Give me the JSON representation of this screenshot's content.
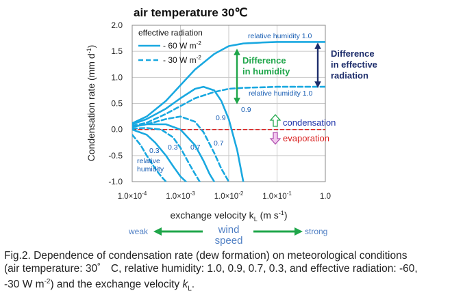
{
  "chart_data": {
    "type": "line",
    "title": "air temperature 30℃",
    "xlabel": "exchange velocity k",
    "xlabel_sub": "L",
    "xlabel_unit_pre": " (m s",
    "xlabel_unit_sup": "-1",
    "xlabel_unit_post": ")",
    "ylabel": "Condensation rate  (mm d",
    "ylabel_sup": "-1",
    "ylabel_post": ")",
    "x_scale": "log",
    "xlim": [
      0.0001,
      1.0
    ],
    "ylim": [
      -1.0,
      2.0
    ],
    "y_ticks": [
      "2.0",
      "1.5",
      "1.0",
      "0.5",
      "0.0",
      "-0.5",
      "-1.0"
    ],
    "x_ticks": [
      "1.0×10",
      "1.0×10",
      "1.0×10",
      "1.0×10",
      "1.0"
    ],
    "x_tick_exps": [
      "-4",
      "-3",
      "-2",
      "-1",
      ""
    ],
    "grid": true,
    "legend": {
      "title": "effective radiation",
      "items": [
        {
          "label": "- 60 W m",
          "sup": "-2",
          "style": "solid"
        },
        {
          "label": "- 30 W m",
          "sup": "-2",
          "style": "dashed"
        }
      ]
    },
    "series": [
      {
        "name": "- 60 W m-2",
        "rh": "1.0",
        "style": "solid",
        "x": [
          0.0001,
          0.0002,
          0.0005,
          0.001,
          0.002,
          0.005,
          0.01,
          0.02,
          0.05,
          0.1,
          0.2,
          0.5,
          1.0
        ],
        "y": [
          0.12,
          0.25,
          0.55,
          0.85,
          1.15,
          1.45,
          1.6,
          1.65,
          1.67,
          1.68,
          1.68,
          1.68,
          1.68
        ]
      },
      {
        "name": "- 60 W m-2",
        "rh": "0.9",
        "style": "solid",
        "x": [
          0.0001,
          0.0002,
          0.0005,
          0.001,
          0.002,
          0.003,
          0.005,
          0.007,
          0.01,
          0.015,
          0.02
        ],
        "y": [
          0.1,
          0.2,
          0.4,
          0.6,
          0.78,
          0.82,
          0.75,
          0.55,
          0.2,
          -0.4,
          -1.0
        ]
      },
      {
        "name": "- 60 W m-2",
        "rh": "0.7",
        "style": "solid",
        "x": [
          0.0001,
          0.0002,
          0.0005,
          0.001,
          0.002,
          0.003,
          0.004,
          0.005
        ],
        "y": [
          0.05,
          0.1,
          0.1,
          0.0,
          -0.3,
          -0.6,
          -0.85,
          -1.0
        ]
      },
      {
        "name": "- 60 W m-2",
        "rh": "0.3",
        "style": "solid",
        "x": [
          0.0001,
          0.0002,
          0.0003,
          0.0005,
          0.0007,
          0.001,
          0.0013
        ],
        "y": [
          0.0,
          -0.1,
          -0.25,
          -0.5,
          -0.7,
          -0.9,
          -1.0
        ]
      },
      {
        "name": "- 30 W m-2",
        "rh": "1.0",
        "style": "dashed",
        "x": [
          0.0001,
          0.0002,
          0.0005,
          0.001,
          0.002,
          0.005,
          0.01,
          0.02,
          0.05,
          0.1,
          0.2,
          0.5,
          1.0
        ],
        "y": [
          0.07,
          0.13,
          0.3,
          0.45,
          0.6,
          0.72,
          0.78,
          0.8,
          0.81,
          0.82,
          0.82,
          0.82,
          0.82
        ]
      },
      {
        "name": "- 30 W m-2",
        "rh": "0.9",
        "style": "dashed",
        "x": [
          0.0001,
          0.0002,
          0.0005,
          0.001,
          0.002,
          0.003,
          0.005,
          0.007,
          0.01
        ],
        "y": [
          0.05,
          0.1,
          0.2,
          0.25,
          0.15,
          -0.05,
          -0.45,
          -0.75,
          -1.0
        ]
      },
      {
        "name": "- 30 W m-2",
        "rh": "0.7",
        "style": "dashed",
        "x": [
          0.0001,
          0.0002,
          0.0004,
          0.0007,
          0.001,
          0.0015,
          0.002,
          0.0025
        ],
        "y": [
          0.02,
          0.03,
          0.0,
          -0.15,
          -0.35,
          -0.65,
          -0.85,
          -1.0
        ]
      },
      {
        "name": "- 30 W m-2",
        "rh": "0.3",
        "style": "dashed",
        "x": [
          0.0001,
          0.00015,
          0.0002,
          0.0003,
          0.0004,
          0.0005
        ],
        "y": [
          -0.1,
          -0.3,
          -0.5,
          -0.75,
          -0.9,
          -1.0
        ]
      }
    ],
    "annotations": {
      "rh_label_1_solid": "relative humidity 1.0",
      "rh_label_1_dashed": "relative humidity 1.0",
      "rh_09_solid": "0.9",
      "rh_09_dashed": "0.9",
      "rh_07_solid": "0.7",
      "rh_07_dashed": "0.7",
      "rh_03_solid": "0.3",
      "rh_03_dashed": "0.3",
      "rh_word_1": "relative",
      "rh_word_2": "humidity",
      "diff_humidity_1": "Difference",
      "diff_humidity_2": "in humidity",
      "diff_radiation_1": "Difference",
      "diff_radiation_2": "in effective",
      "diff_radiation_3": "radiation",
      "condensation": "condensation",
      "evaporation": "evaporation"
    },
    "colors": {
      "curve": "#19a8e0",
      "green": "#1fa64a",
      "navy": "#1d2d6b",
      "blue_text": "#1a2fa8",
      "red": "#d9201f",
      "grid": "#c8c8c8",
      "wind": "#4f7fc4"
    }
  },
  "wind": {
    "weak": "weak",
    "strong": "strong",
    "label_1": "wind",
    "label_2": "speed"
  },
  "caption": {
    "line1": "Fig.2. Dependence of condensation rate (dew formation) on meteorological conditions",
    "line2a": "(air temperature: 30゜ C, relative humidity: 1.0, 0.9, 0.7, 0.3, and effective radiation: -60,",
    "line3a": "-30 W m",
    "line3sup": "-2",
    "line3b": ") and the exchange velocity ",
    "line3k": "k",
    "line3sub": "L",
    "line3c": "."
  }
}
